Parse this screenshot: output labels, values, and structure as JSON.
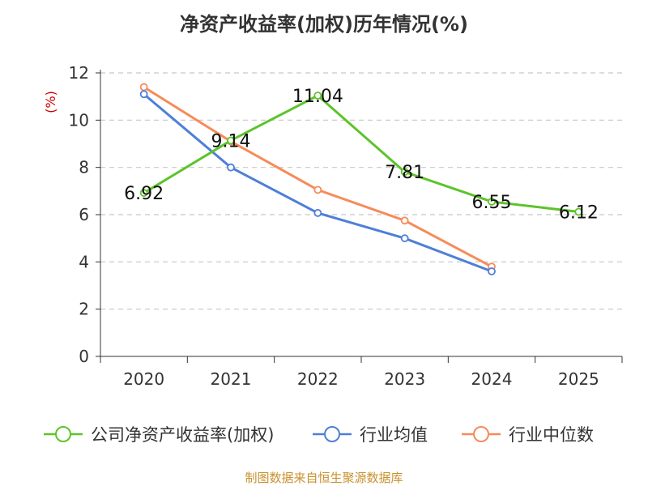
{
  "chart_data": {
    "type": "line",
    "title": "净资产收益率(加权)历年情况(%)",
    "ylabel": "(%)",
    "xlabel": "",
    "categories": [
      "2020",
      "2021",
      "2022",
      "2023",
      "2024",
      "2025"
    ],
    "ylim": [
      0,
      12
    ],
    "yticks": [
      "0",
      "2",
      "4",
      "6",
      "8",
      "10",
      "12"
    ],
    "grid": true,
    "legend_position": "bottom",
    "series": [
      {
        "name": "公司净资产收益率(加权)",
        "color": "#5cc42a",
        "values": [
          6.92,
          9.14,
          11.04,
          7.81,
          6.55,
          6.12
        ],
        "labels": [
          "6.92",
          "9.14",
          "11.04",
          "7.81",
          "6.55",
          "6.12"
        ]
      },
      {
        "name": "行业均值",
        "color": "#4e7fd8",
        "values": [
          11.1,
          8.0,
          6.07,
          5.0,
          3.6,
          null
        ]
      },
      {
        "name": "行业中位数",
        "color": "#f68b5a",
        "values": [
          11.4,
          9.1,
          7.05,
          5.75,
          3.8,
          null
        ]
      }
    ],
    "source": "制图数据来自恒生聚源数据库"
  }
}
